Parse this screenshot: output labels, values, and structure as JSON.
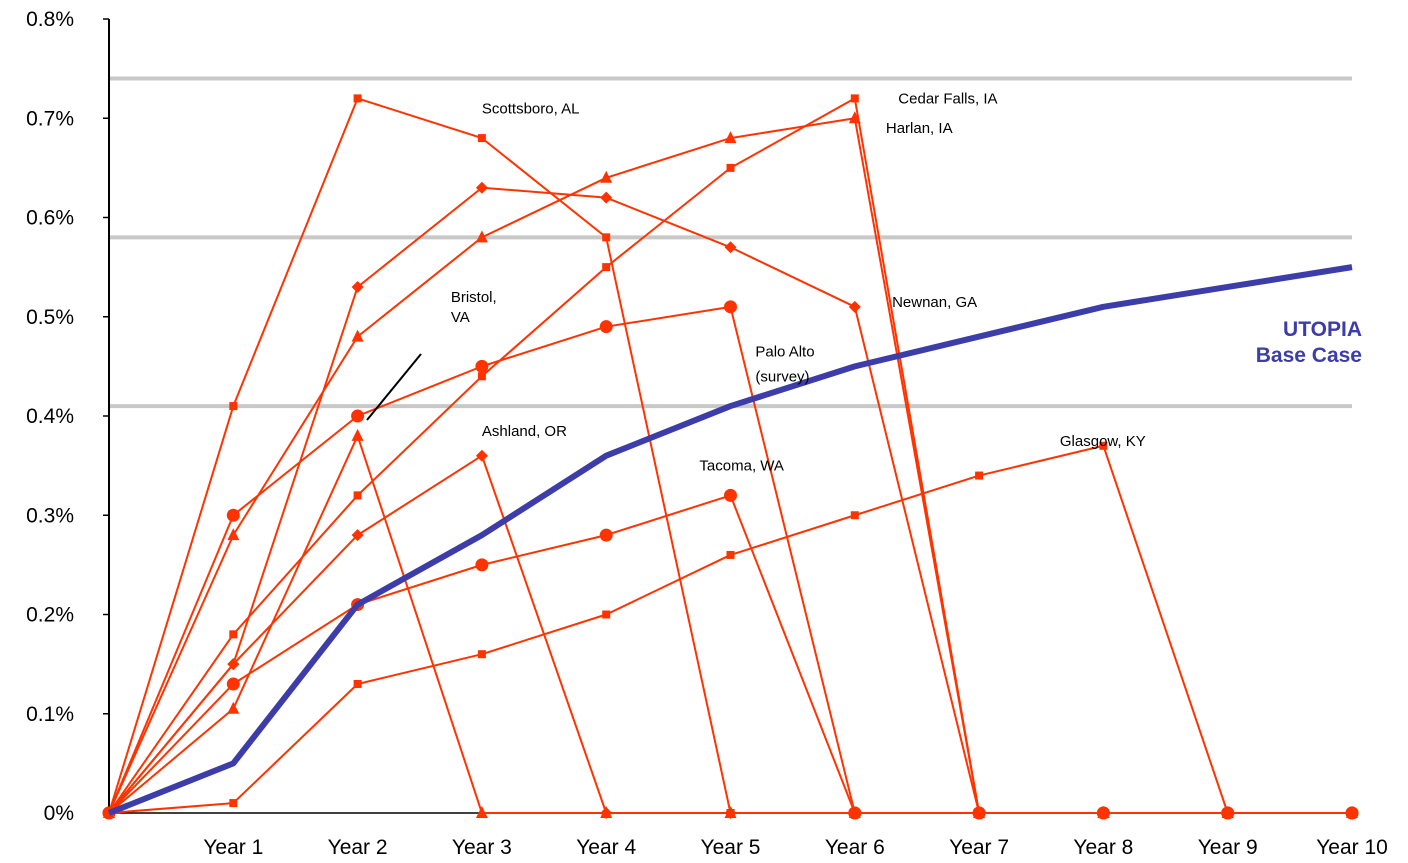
{
  "chart_data": {
    "type": "line",
    "title": "",
    "xlabel": "",
    "ylabel": "",
    "categories": [
      "",
      "Year 1",
      "Year 2",
      "Year 3",
      "Year 4",
      "Year 5",
      "Year 6",
      "Year 7",
      "Year 8",
      "Year 9",
      "Year 10"
    ],
    "y_ticks": [
      "0%",
      "0.1%",
      "0.2%",
      "0.3%",
      "0.4%",
      "0.5%",
      "0.6%",
      "0.7%",
      "0.8%"
    ],
    "ylim": [
      0,
      0.8
    ],
    "grid_lines_y": [
      0.41,
      0.58,
      0.74
    ],
    "series": [
      {
        "label": "Scottsboro, AL",
        "marker": "square",
        "color": "#ff3300",
        "values": [
          0,
          0.41,
          0.72,
          0.68,
          0.58,
          0,
          0,
          0,
          0,
          0,
          0
        ]
      },
      {
        "label": "Cedar Falls, IA",
        "marker": "square",
        "color": "#ff3300",
        "values": [
          0,
          0.18,
          0.32,
          0.44,
          0.55,
          0.65,
          0.72,
          0,
          0,
          0,
          0
        ]
      },
      {
        "label": "Harlan, IA",
        "marker": "triangle",
        "color": "#ff3300",
        "values": [
          0,
          0.28,
          0.48,
          0.58,
          0.64,
          0.68,
          0.7,
          0,
          0,
          0,
          0
        ]
      },
      {
        "label": "Newnan, GA",
        "marker": "diamond",
        "color": "#ff3300",
        "values": [
          0,
          0.15,
          0.53,
          0.63,
          0.62,
          0.57,
          0.51,
          0,
          0,
          0,
          0
        ]
      },
      {
        "label": "Bristol, VA",
        "marker": "triangle",
        "color": "#ff3300",
        "values": [
          0,
          0.105,
          0.38,
          0,
          0,
          0,
          0,
          0,
          0,
          0,
          0
        ]
      },
      {
        "label": "Palo Alto (survey)",
        "marker": "circle",
        "color": "#ff3300",
        "values": [
          0,
          0.3,
          0.4,
          0.45,
          0.49,
          0.51,
          0,
          0,
          0,
          0,
          0
        ]
      },
      {
        "label": "Ashland, OR",
        "marker": "diamond",
        "color": "#ff3300",
        "values": [
          0,
          0.15,
          0.28,
          0.36,
          0,
          0,
          0,
          0,
          0,
          0,
          0
        ]
      },
      {
        "label": "Tacoma, WA",
        "marker": "circle",
        "color": "#ff3300",
        "values": [
          0,
          0.13,
          0.21,
          0.25,
          0.28,
          0.32,
          0,
          0,
          0,
          0,
          0
        ]
      },
      {
        "label": "Glasgow, KY",
        "marker": "square",
        "color": "#ff3300",
        "values": [
          0,
          0.01,
          0.13,
          0.16,
          0.2,
          0.26,
          0.3,
          0.34,
          0.37,
          0,
          0
        ]
      },
      {
        "label": "UTOPIA Base Case",
        "marker": "none",
        "color": "#3d3daa",
        "values": [
          0,
          0.05,
          0.21,
          0.28,
          0.36,
          0.41,
          0.45,
          0.48,
          0.51,
          0.53,
          0.55
        ]
      }
    ],
    "annotations": [
      {
        "text": "Scottsboro, AL",
        "x": 3,
        "y": 0.71
      },
      {
        "text": "Cedar Falls, IA",
        "x": 6.35,
        "y": 0.72
      },
      {
        "text": "Harlan, IA",
        "x": 6.25,
        "y": 0.69
      },
      {
        "text": "Bristol,",
        "x": 2.75,
        "y": 0.52
      },
      {
        "text": "VA",
        "x": 2.75,
        "y": 0.5
      },
      {
        "text": "Newnan, GA",
        "x": 6.3,
        "y": 0.515
      },
      {
        "text": "Palo Alto",
        "x": 5.2,
        "y": 0.465
      },
      {
        "text": "(survey)",
        "x": 5.2,
        "y": 0.44
      },
      {
        "text": "Ashland, OR",
        "x": 3,
        "y": 0.385
      },
      {
        "text": "Tacoma, WA",
        "x": 4.75,
        "y": 0.35
      },
      {
        "text": "Glasgow, KY",
        "x": 7.65,
        "y": 0.375
      }
    ],
    "base_case_label": [
      "UTOPIA",
      "Base Case"
    ]
  }
}
